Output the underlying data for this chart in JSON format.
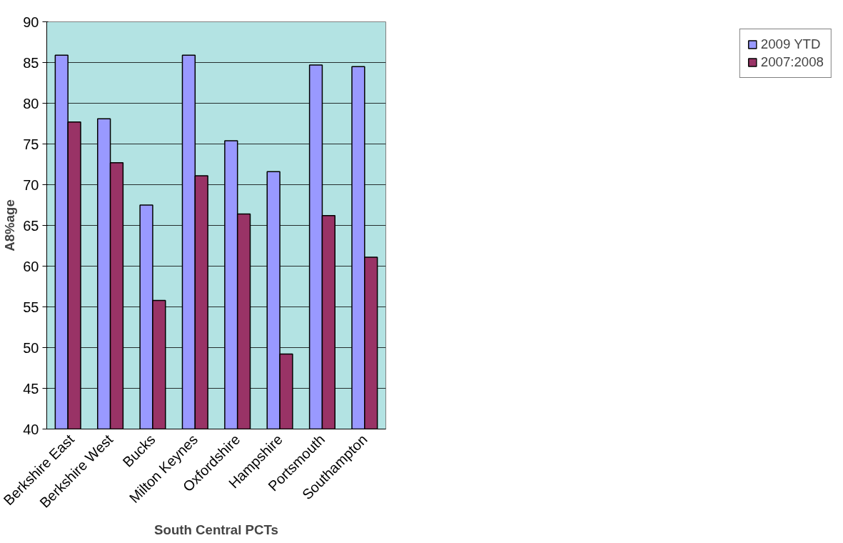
{
  "chart_data": {
    "type": "bar",
    "xlabel": "South Central PCTs",
    "ylabel": "A8%age",
    "categories": [
      "Berkshire East",
      "Berkshire West",
      "Bucks",
      "Milton Keynes",
      "Oxfordshire",
      "Hampshire",
      "Portsmouth",
      "Southampton"
    ],
    "series": [
      {
        "name": "2009 YTD",
        "color": "#9999ff",
        "values": [
          85.9,
          78.1,
          67.5,
          85.9,
          75.4,
          71.6,
          84.7,
          84.5
        ]
      },
      {
        "name": "2007:2008",
        "color": "#993366",
        "values": [
          77.7,
          72.7,
          55.8,
          71.1,
          66.4,
          49.2,
          66.2,
          61.1
        ]
      }
    ],
    "ylim": [
      40,
      90
    ],
    "yticks": [
      40,
      45,
      50,
      55,
      60,
      65,
      70,
      75,
      80,
      85,
      90
    ],
    "grid": "y",
    "legend": "right"
  }
}
